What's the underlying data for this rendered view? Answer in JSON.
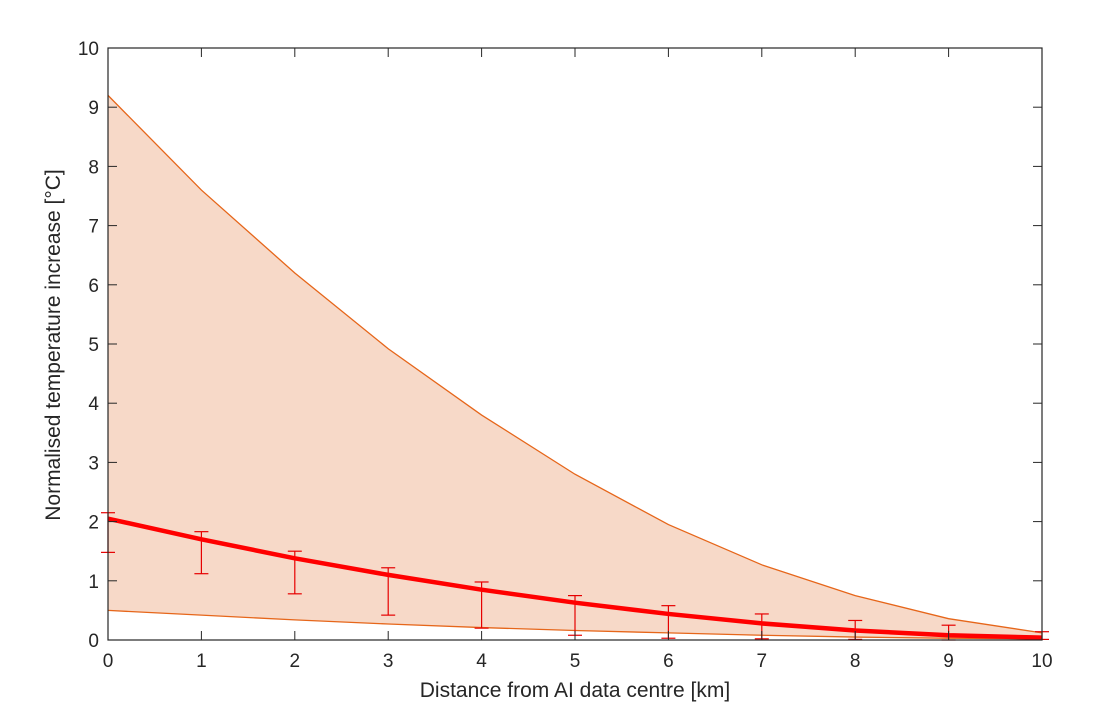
{
  "chart_data": {
    "type": "line",
    "xlabel": "Distance from AI data centre [km]",
    "ylabel": "Normalised temperature increase [°C]",
    "xlim": [
      0,
      10
    ],
    "ylim": [
      0,
      10
    ],
    "x_ticks": [
      0,
      1,
      2,
      3,
      4,
      5,
      6,
      7,
      8,
      9,
      10
    ],
    "y_ticks": [
      0,
      1,
      2,
      3,
      4,
      5,
      6,
      7,
      8,
      9,
      10
    ],
    "grid": false,
    "band": {
      "x": [
        0,
        1,
        2,
        3,
        4,
        5,
        6,
        7,
        8,
        9,
        10
      ],
      "upper": [
        9.2,
        7.6,
        6.2,
        4.92,
        3.8,
        2.8,
        1.95,
        1.27,
        0.75,
        0.36,
        0.12
      ],
      "lower": [
        0.5,
        0.42,
        0.34,
        0.27,
        0.21,
        0.16,
        0.12,
        0.08,
        0.05,
        0.03,
        0.02
      ],
      "fill_color": "#f7d9c8",
      "edge_color": "#e6661a"
    },
    "series": [
      {
        "x": [
          0,
          1,
          2,
          3,
          4,
          5,
          6,
          7,
          8,
          9,
          10
        ],
        "values": [
          2.05,
          1.7,
          1.38,
          1.1,
          0.85,
          0.63,
          0.44,
          0.28,
          0.16,
          0.08,
          0.04
        ],
        "color": "#ff0000"
      }
    ],
    "error_bars": {
      "x": [
        0,
        1,
        2,
        3,
        4,
        5,
        6,
        7,
        8,
        9,
        10
      ],
      "low": [
        1.48,
        1.12,
        0.78,
        0.42,
        0.2,
        0.08,
        0.03,
        0.02,
        0.01,
        0.0,
        0.01
      ],
      "high": [
        2.15,
        1.83,
        1.5,
        1.22,
        0.98,
        0.75,
        0.58,
        0.44,
        0.33,
        0.25,
        0.14
      ],
      "color": "#e60000"
    }
  }
}
